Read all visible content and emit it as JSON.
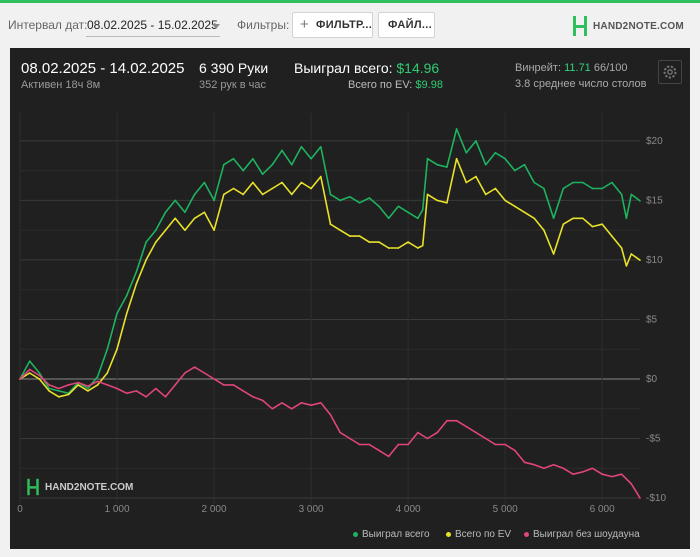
{
  "toolbar": {
    "date_label": "Интервал дат:",
    "date_value": "08.02.2025 - 15.02.2025",
    "filters_label": "Фильтры:",
    "filter_button": "ФИЛЬТР...",
    "file_button": "ФАЙЛ...",
    "logo_text": "HAND2NOTE.COM"
  },
  "stats": {
    "date_range": "08.02.2025 - 14.02.2025",
    "active": "Активен 18ч 8м",
    "hands": "6 390 Руки",
    "hands_per_hour": "352 рук в час",
    "won_total_label": "Выиграл всего:",
    "won_total_value": "$14.96",
    "ev_label": "Всего по EV:",
    "ev_value": "$9.98",
    "winrate_label": "Винрейт:",
    "winrate_value": "11.71",
    "winrate_suffix": "66/100",
    "tables": "3.8 среднее число столов"
  },
  "watermark": "HAND2NOTE.COM",
  "colors": {
    "won": "#1db35f",
    "ev": "#e8e22a",
    "noshowdown": "#e0457b"
  },
  "chart_data": {
    "type": "line",
    "xlim": [
      0,
      6390
    ],
    "ylim": [
      -10.5,
      21.5
    ],
    "x_ticks": [
      0,
      1000,
      2000,
      3000,
      4000,
      5000,
      6000
    ],
    "x_tick_labels": [
      "0",
      "1 000",
      "2 000",
      "3 000",
      "4 000",
      "5 000",
      "6 000"
    ],
    "y_ticks": [
      20,
      15,
      10,
      5,
      0,
      -5,
      -10
    ],
    "y_tick_labels": [
      "$20",
      "$15",
      "$10",
      "$5",
      "$0",
      "-$5",
      "-$10"
    ],
    "grid": true,
    "legend_position": "bottom-right",
    "series": [
      {
        "name": "Выиграл всего",
        "color": "#1db35f",
        "x": [
          0,
          100,
          200,
          300,
          400,
          500,
          600,
          700,
          800,
          900,
          1000,
          1100,
          1200,
          1300,
          1400,
          1500,
          1600,
          1700,
          1800,
          1900,
          2000,
          2100,
          2200,
          2300,
          2400,
          2500,
          2600,
          2700,
          2800,
          2900,
          3000,
          3100,
          3200,
          3300,
          3400,
          3500,
          3600,
          3700,
          3800,
          3900,
          4000,
          4100,
          4150,
          4200,
          4300,
          4400,
          4500,
          4600,
          4700,
          4800,
          4900,
          5000,
          5100,
          5200,
          5300,
          5400,
          5500,
          5600,
          5700,
          5800,
          5900,
          6000,
          6100,
          6200,
          6250,
          6300,
          6390
        ],
        "y": [
          0,
          1.5,
          0.5,
          -0.8,
          -1.0,
          -1.2,
          -0.3,
          -0.8,
          0.2,
          2.5,
          5.5,
          7.0,
          9.0,
          11.5,
          12.5,
          14.0,
          15.0,
          14.0,
          15.5,
          16.5,
          15.0,
          18.0,
          18.5,
          17.5,
          18.5,
          17.2,
          18.0,
          19.2,
          18.0,
          19.5,
          18.5,
          19.5,
          15.5,
          15.0,
          15.3,
          14.8,
          15.2,
          14.5,
          13.5,
          14.5,
          14.0,
          13.5,
          14.2,
          18.5,
          18.0,
          17.8,
          21.0,
          19.0,
          20.0,
          18.0,
          19.0,
          18.5,
          17.5,
          18.0,
          16.5,
          16.0,
          13.5,
          16.0,
          16.5,
          16.5,
          16.0,
          16.0,
          16.5,
          15.5,
          13.5,
          15.5,
          14.96
        ]
      },
      {
        "name": "Всего по EV",
        "color": "#e8e22a",
        "x": [
          0,
          100,
          200,
          300,
          400,
          500,
          600,
          700,
          800,
          900,
          1000,
          1100,
          1200,
          1300,
          1400,
          1500,
          1600,
          1700,
          1800,
          1900,
          2000,
          2100,
          2200,
          2300,
          2400,
          2500,
          2600,
          2700,
          2800,
          2900,
          3000,
          3100,
          3200,
          3300,
          3400,
          3500,
          3600,
          3700,
          3800,
          3900,
          4000,
          4100,
          4150,
          4200,
          4300,
          4400,
          4500,
          4600,
          4700,
          4800,
          4900,
          5000,
          5100,
          5200,
          5300,
          5400,
          5500,
          5600,
          5700,
          5800,
          5900,
          6000,
          6100,
          6200,
          6250,
          6300,
          6390
        ],
        "y": [
          0,
          0.5,
          0.0,
          -1.0,
          -1.5,
          -1.3,
          -0.5,
          -1.0,
          -0.5,
          0.5,
          2.5,
          5.5,
          8.0,
          10.0,
          11.5,
          12.5,
          13.5,
          12.5,
          13.5,
          14.0,
          12.5,
          15.5,
          16.0,
          15.5,
          16.5,
          15.5,
          16.0,
          16.5,
          15.5,
          16.5,
          16.0,
          17.0,
          13.0,
          12.5,
          12.0,
          12.0,
          11.5,
          11.5,
          11.0,
          11.0,
          11.5,
          11.0,
          11.2,
          15.5,
          15.0,
          14.8,
          18.5,
          16.5,
          17.0,
          15.5,
          16.0,
          15.0,
          14.5,
          14.0,
          13.5,
          12.5,
          10.5,
          13.0,
          13.5,
          13.5,
          12.8,
          13.0,
          12.0,
          11.0,
          9.5,
          10.5,
          9.98
        ]
      },
      {
        "name": "Выиграл без шоудауна",
        "color": "#e0457b",
        "x": [
          0,
          100,
          200,
          300,
          400,
          500,
          600,
          700,
          800,
          900,
          1000,
          1100,
          1200,
          1300,
          1400,
          1500,
          1600,
          1700,
          1800,
          1900,
          2000,
          2100,
          2200,
          2300,
          2400,
          2500,
          2600,
          2700,
          2800,
          2900,
          3000,
          3100,
          3200,
          3300,
          3400,
          3500,
          3600,
          3700,
          3800,
          3900,
          4000,
          4100,
          4200,
          4300,
          4400,
          4500,
          4600,
          4700,
          4800,
          4900,
          5000,
          5100,
          5200,
          5300,
          5400,
          5500,
          5600,
          5700,
          5800,
          5900,
          6000,
          6100,
          6200,
          6300,
          6390
        ],
        "y": [
          0,
          0.8,
          0.3,
          -0.5,
          -0.8,
          -0.5,
          -0.3,
          -0.6,
          -0.2,
          -0.5,
          -0.8,
          -1.2,
          -1.0,
          -1.5,
          -0.8,
          -1.5,
          -0.5,
          0.5,
          1.0,
          0.5,
          0.0,
          -0.5,
          -0.5,
          -1.0,
          -1.5,
          -1.8,
          -2.5,
          -2.0,
          -2.5,
          -2.0,
          -2.2,
          -2.0,
          -3.0,
          -4.5,
          -5.0,
          -5.5,
          -5.5,
          -6.0,
          -6.5,
          -5.5,
          -5.5,
          -4.5,
          -5.0,
          -4.5,
          -3.5,
          -3.5,
          -4.0,
          -4.5,
          -5.0,
          -5.5,
          -5.5,
          -6.0,
          -7.0,
          -7.2,
          -7.5,
          -7.2,
          -7.5,
          -8.0,
          -7.8,
          -7.5,
          -8.0,
          -8.2,
          -8.0,
          -8.8,
          -10.0
        ]
      }
    ]
  }
}
